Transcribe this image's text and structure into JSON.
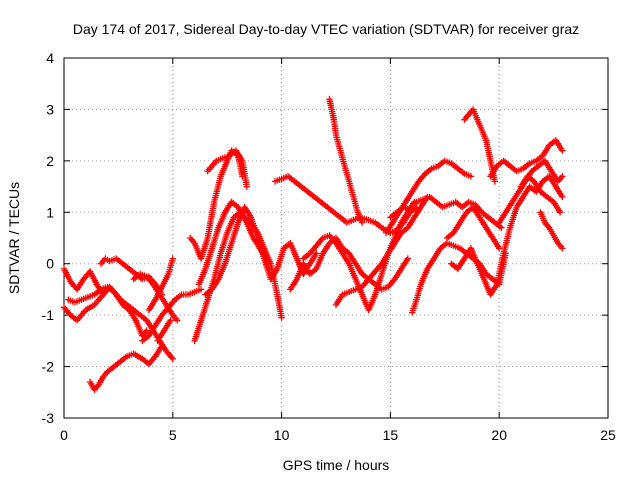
{
  "chart_data": {
    "type": "scatter",
    "title": "Day 174 of 2017, Sidereal Day-to-day VTEC variation (SDTVAR) for receiver graz",
    "xlabel": "GPS time / hours",
    "ylabel": "SDTVAR / TECUs",
    "xlim": [
      0,
      25
    ],
    "ylim": [
      -3,
      4
    ],
    "xticks": [
      0,
      5,
      10,
      15,
      20,
      25
    ],
    "yticks": [
      -3,
      -2,
      -1,
      0,
      1,
      2,
      3,
      4
    ],
    "grid": true,
    "marker": "+",
    "color": "#ff0000",
    "series": [
      {
        "name": "s1",
        "x": [
          0.0,
          0.3,
          0.6,
          0.9,
          1.2,
          1.5,
          1.8,
          2.0
        ],
        "y": [
          -0.1,
          -0.35,
          -0.5,
          -0.3,
          -0.15,
          -0.4,
          -0.6,
          -0.5
        ]
      },
      {
        "name": "s2",
        "x": [
          0.0,
          0.3,
          0.6,
          1.0,
          1.4,
          1.8,
          2.1,
          2.4,
          2.7,
          3.0,
          3.3,
          3.6,
          3.8
        ],
        "y": [
          -0.85,
          -1.0,
          -1.1,
          -0.9,
          -0.8,
          -0.6,
          -0.45,
          -0.6,
          -0.8,
          -0.9,
          -1.1,
          -1.4,
          -1.3
        ]
      },
      {
        "name": "s3",
        "x": [
          1.2,
          1.4,
          1.6,
          1.8,
          2.0,
          2.3,
          2.6,
          2.9,
          3.2,
          3.6,
          3.9,
          4.2,
          4.5
        ],
        "y": [
          -2.3,
          -2.45,
          -2.35,
          -2.2,
          -2.1,
          -2.0,
          -1.9,
          -1.8,
          -1.75,
          -1.85,
          -1.95,
          -1.8,
          -1.6
        ]
      },
      {
        "name": "s4",
        "x": [
          1.7,
          1.9,
          2.1,
          2.4,
          2.7,
          3.0,
          3.3,
          3.6,
          3.9,
          4.2,
          4.5
        ],
        "y": [
          0.0,
          0.1,
          0.05,
          0.1,
          0.0,
          -0.1,
          -0.2,
          -0.3,
          -0.25,
          -0.4,
          -0.6
        ]
      },
      {
        "name": "s5",
        "x": [
          0.2,
          0.5,
          0.8,
          1.1,
          1.4,
          1.7,
          2.0,
          2.3,
          2.6,
          2.9,
          3.2,
          3.5,
          3.8,
          4.1,
          4.4,
          4.7,
          5.0
        ],
        "y": [
          -0.7,
          -0.75,
          -0.7,
          -0.65,
          -0.6,
          -0.5,
          -0.45,
          -0.55,
          -0.7,
          -0.8,
          -0.9,
          -1.0,
          -1.1,
          -1.3,
          -1.5,
          -1.7,
          -1.85
        ]
      },
      {
        "name": "s6",
        "x": [
          3.2,
          3.5,
          3.8,
          4.1,
          4.4,
          4.7,
          5.0,
          5.2
        ],
        "y": [
          -0.3,
          -0.2,
          -0.25,
          -0.4,
          -0.6,
          -0.8,
          -1.0,
          -1.1
        ]
      },
      {
        "name": "s7",
        "x": [
          3.6,
          3.9,
          4.2,
          4.5,
          4.8,
          5.1,
          5.4,
          5.7,
          6.0,
          6.3
        ],
        "y": [
          -1.5,
          -1.4,
          -1.2,
          -1.0,
          -0.85,
          -0.7,
          -0.6,
          -0.6,
          -0.55,
          -0.5
        ]
      },
      {
        "name": "s8",
        "x": [
          3.9,
          4.2,
          4.5,
          4.8,
          5.0
        ],
        "y": [
          -0.9,
          -0.7,
          -0.45,
          -0.2,
          0.1
        ]
      },
      {
        "name": "s9",
        "x": [
          4.3,
          4.6,
          4.9
        ],
        "y": [
          -1.5,
          -1.3,
          -1.1
        ]
      },
      {
        "name": "s10",
        "x": [
          5.8,
          6.0,
          6.3,
          6.6,
          6.9,
          7.2,
          7.5,
          7.7,
          8.0,
          8.2
        ],
        "y": [
          0.5,
          0.4,
          0.1,
          0.5,
          1.2,
          1.7,
          2.0,
          2.2,
          2.1,
          1.7
        ]
      },
      {
        "name": "s11",
        "x": [
          6.6,
          6.8,
          7.0,
          7.3,
          7.6,
          7.9,
          8.2,
          8.4
        ],
        "y": [
          1.8,
          1.9,
          2.0,
          2.05,
          2.1,
          2.2,
          2.0,
          1.5
        ]
      },
      {
        "name": "s12",
        "x": [
          6.2,
          6.5,
          6.8,
          7.1,
          7.4,
          7.7,
          8.0,
          8.3,
          8.6,
          8.9,
          9.2,
          9.5,
          9.8,
          10.0
        ],
        "y": [
          -0.4,
          -0.1,
          0.3,
          0.7,
          1.0,
          1.2,
          1.1,
          0.9,
          0.8,
          0.6,
          0.3,
          0.0,
          -0.6,
          -1.05
        ]
      },
      {
        "name": "s13",
        "x": [
          6.0,
          6.3,
          6.6,
          6.9,
          7.2,
          7.5,
          7.8,
          8.1,
          8.4,
          8.7,
          9.0,
          9.3
        ],
        "y": [
          -1.5,
          -1.1,
          -0.7,
          -0.3,
          0.2,
          0.6,
          0.9,
          1.0,
          0.8,
          0.5,
          0.3,
          0.1
        ]
      },
      {
        "name": "s14",
        "x": [
          6.5,
          6.8,
          7.1,
          7.4,
          7.7,
          8.0,
          8.3,
          8.6,
          8.9,
          9.2,
          9.5,
          9.8,
          10.1,
          10.4,
          10.7,
          11.0,
          11.3,
          11.6
        ],
        "y": [
          -0.6,
          -0.5,
          -0.3,
          0.0,
          0.4,
          0.8,
          1.1,
          0.9,
          0.5,
          0.1,
          -0.3,
          -0.1,
          0.3,
          0.4,
          0.1,
          -0.2,
          0.0,
          0.2
        ]
      },
      {
        "name": "s15",
        "x": [
          9.7,
          10.0,
          10.3,
          10.6,
          10.9,
          11.2,
          11.5,
          11.8,
          12.1,
          12.4,
          12.7,
          13.0,
          13.3,
          13.6,
          14.0,
          14.3,
          14.6,
          15.0,
          15.3,
          15.6,
          15.9,
          16.2
        ],
        "y": [
          1.6,
          1.65,
          1.7,
          1.6,
          1.5,
          1.4,
          1.3,
          1.2,
          1.1,
          1.0,
          0.9,
          0.8,
          0.85,
          0.9,
          0.85,
          0.8,
          0.7,
          0.6,
          0.65,
          0.8,
          1.0,
          1.1
        ]
      },
      {
        "name": "s16",
        "x": [
          12.2,
          12.3,
          12.4,
          12.5,
          12.7,
          12.9,
          13.1,
          13.3,
          13.5,
          13.7
        ],
        "y": [
          3.2,
          3.0,
          2.8,
          2.5,
          2.2,
          1.9,
          1.6,
          1.3,
          1.0,
          0.8
        ]
      },
      {
        "name": "s17",
        "x": [
          10.4,
          10.7,
          11.0,
          11.3,
          11.6,
          11.9,
          12.2,
          12.5,
          12.8,
          13.1,
          13.4,
          13.7,
          14.0,
          14.3,
          14.6,
          14.9,
          15.2,
          15.5,
          15.8
        ],
        "y": [
          -0.5,
          -0.3,
          0.0,
          -0.2,
          -0.1,
          0.2,
          0.4,
          0.5,
          0.3,
          0.2,
          0.0,
          -0.2,
          -0.3,
          -0.4,
          -0.5,
          -0.45,
          -0.3,
          -0.1,
          0.1
        ]
      },
      {
        "name": "s18",
        "x": [
          12.5,
          12.8,
          13.1,
          13.4,
          13.7,
          14.0,
          14.3,
          14.6,
          14.9,
          15.2,
          15.5,
          15.8,
          16.1,
          16.4,
          16.7
        ],
        "y": [
          -0.8,
          -0.6,
          -0.55,
          -0.5,
          -0.45,
          -0.3,
          -0.15,
          0.0,
          0.2,
          0.4,
          0.6,
          0.7,
          0.9,
          1.1,
          1.3
        ]
      },
      {
        "name": "s19",
        "x": [
          11.0,
          11.3,
          11.6,
          11.9,
          12.2,
          12.5,
          12.8,
          13.1,
          13.4,
          13.7,
          14.0,
          14.3,
          14.6,
          14.9,
          15.2,
          15.5,
          15.8,
          16.1
        ],
        "y": [
          0.1,
          0.2,
          0.35,
          0.5,
          0.55,
          0.4,
          0.2,
          0.0,
          -0.3,
          -0.6,
          -0.9,
          -0.6,
          -0.2,
          0.2,
          0.5,
          0.8,
          1.0,
          1.2
        ]
      },
      {
        "name": "s20",
        "x": [
          14.8,
          15.1,
          15.4,
          15.7,
          16.0,
          16.3,
          16.6,
          16.9,
          17.2,
          17.5,
          17.8,
          18.1,
          18.4,
          18.7
        ],
        "y": [
          0.6,
          0.8,
          1.0,
          1.2,
          1.4,
          1.6,
          1.75,
          1.85,
          1.9,
          2.0,
          1.95,
          1.85,
          1.75,
          1.7
        ]
      },
      {
        "name": "s21",
        "x": [
          15.0,
          15.3,
          15.6,
          15.9,
          16.2,
          16.5,
          16.8,
          17.1,
          17.4,
          17.7,
          18.0,
          18.3,
          18.6,
          18.9,
          19.2,
          19.5,
          19.8,
          20.1
        ],
        "y": [
          0.9,
          1.0,
          1.1,
          1.05,
          1.2,
          1.25,
          1.3,
          1.2,
          1.1,
          1.15,
          1.2,
          1.1,
          1.2,
          1.15,
          1.0,
          0.9,
          0.8,
          0.7
        ]
      },
      {
        "name": "s22",
        "x": [
          16.0,
          16.2,
          16.4,
          16.7,
          17.0,
          17.3,
          17.6,
          17.9,
          18.2,
          18.5,
          18.8,
          19.1,
          19.4,
          19.7,
          20.0,
          20.3
        ],
        "y": [
          -0.95,
          -0.7,
          -0.4,
          -0.1,
          0.1,
          0.3,
          0.4,
          0.35,
          0.3,
          0.2,
          0.1,
          0.0,
          -0.2,
          -0.3,
          -0.4,
          0.2
        ]
      },
      {
        "name": "s23",
        "x": [
          18.4,
          18.6,
          18.8,
          19.0,
          19.2,
          19.4,
          19.6,
          19.8
        ],
        "y": [
          2.8,
          2.9,
          3.0,
          2.8,
          2.6,
          2.4,
          2.0,
          1.6
        ]
      },
      {
        "name": "s24",
        "x": [
          17.6,
          17.9,
          18.2,
          18.5,
          18.8,
          19.1,
          19.4,
          19.7,
          20.0
        ],
        "y": [
          0.5,
          0.6,
          0.8,
          1.0,
          1.1,
          0.9,
          0.7,
          0.5,
          0.3
        ]
      },
      {
        "name": "s25",
        "x": [
          17.8,
          18.1,
          18.4,
          18.7,
          19.0,
          19.3,
          19.6,
          19.9,
          20.2,
          20.5,
          20.8,
          21.1,
          21.4,
          21.7,
          22.0,
          22.3,
          22.6,
          22.9
        ],
        "y": [
          0.0,
          -0.1,
          0.1,
          0.3,
          0.0,
          -0.3,
          -0.6,
          -0.4,
          0.2,
          0.7,
          1.1,
          1.3,
          1.5,
          1.4,
          1.6,
          1.7,
          1.5,
          1.3
        ]
      },
      {
        "name": "s26",
        "x": [
          19.6,
          19.9,
          20.2,
          20.5,
          20.8,
          21.1,
          21.4,
          21.7,
          22.0,
          22.3,
          22.6,
          22.9
        ],
        "y": [
          1.7,
          1.9,
          2.0,
          1.9,
          1.8,
          1.85,
          1.95,
          2.0,
          2.1,
          2.3,
          2.4,
          2.2
        ]
      },
      {
        "name": "s27",
        "x": [
          20.0,
          20.3,
          20.6,
          20.9,
          21.2,
          21.5,
          21.8,
          22.1,
          22.4,
          22.7,
          22.9
        ],
        "y": [
          0.8,
          1.0,
          1.2,
          1.4,
          1.6,
          1.8,
          1.9,
          2.0,
          1.8,
          1.6,
          1.7
        ]
      },
      {
        "name": "s28",
        "x": [
          21.0,
          21.3,
          21.6,
          21.9,
          22.2,
          22.5,
          22.8
        ],
        "y": [
          1.5,
          1.7,
          1.6,
          1.4,
          1.3,
          1.2,
          1.0
        ]
      },
      {
        "name": "s29",
        "x": [
          21.9,
          22.1,
          22.3,
          22.5,
          22.7,
          22.9
        ],
        "y": [
          1.0,
          0.8,
          0.7,
          0.55,
          0.4,
          0.3
        ]
      }
    ]
  }
}
